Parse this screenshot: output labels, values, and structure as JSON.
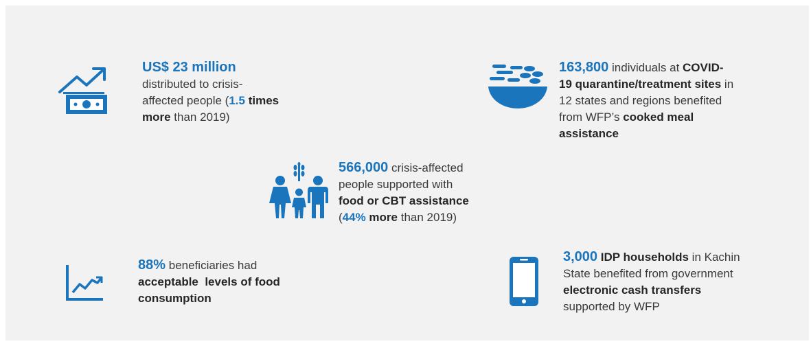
{
  "accent_color": "#1a75bc",
  "stats": {
    "cash": {
      "icon": "money-growth-icon",
      "highlight": "US$ 23 million",
      "text1": "distributed to crisis-",
      "text2": "affected people (",
      "bold_num": "1.5",
      "bold_times": " times",
      "bold_more": "more",
      "text3": " than 2019)"
    },
    "covid": {
      "icon": "food-bowl-icon",
      "highlight": "163,800",
      "text1": " individuals at ",
      "bold1": "COVID-",
      "bold2": "19 quarantine/treatment sites",
      "text2": " in",
      "text3": "12 states and regions benefited",
      "text4": "from WFP’s ",
      "bold3": "cooked meal",
      "bold4": "assistance"
    },
    "people": {
      "icon": "family-icon",
      "highlight": "566,000",
      "text1": " crisis-affected",
      "text2": "people supported with",
      "bold1": "food or CBT assistance",
      "paren_open": "(",
      "hl2": "44%",
      "bold2": " more",
      "text3": " than 2019)"
    },
    "food": {
      "icon": "trend-chart-icon",
      "highlight": "88%",
      "text1": " beneficiaries had",
      "bold1": "acceptable  levels of food",
      "bold2": "consumption"
    },
    "idp": {
      "icon": "mobile-phone-icon",
      "highlight": "3,000",
      "bold1": " IDP households",
      "text1": " in Kachin",
      "text2": "State benefited from government",
      "bold2": "electronic cash transfers",
      "text3": "supported by WFP"
    }
  }
}
